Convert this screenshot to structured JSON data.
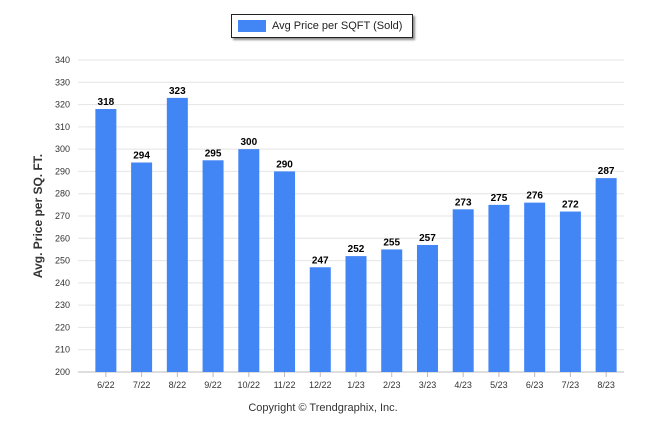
{
  "chart_data": {
    "type": "bar",
    "title": "",
    "xlabel": "",
    "ylabel": "Avg. Price per SQ. FT.",
    "categories": [
      "6/22",
      "7/22",
      "8/22",
      "9/22",
      "10/22",
      "11/22",
      "12/22",
      "1/23",
      "2/23",
      "3/23",
      "4/23",
      "5/23",
      "6/23",
      "7/23",
      "8/23"
    ],
    "series": [
      {
        "name": "Avg Price per SQFT (Sold)",
        "values": [
          318,
          294,
          323,
          295,
          300,
          290,
          247,
          252,
          255,
          257,
          273,
          275,
          276,
          272,
          287
        ]
      }
    ],
    "ylim": [
      200,
      340
    ],
    "yticks": [
      200,
      210,
      220,
      230,
      240,
      250,
      260,
      270,
      280,
      290,
      300,
      310,
      320,
      330,
      340
    ],
    "grid": true,
    "legend_position": "top-center",
    "bar_color": "#4285f4",
    "data_labels": true
  },
  "footer": {
    "copyright": "Copyright © Trendgraphix, Inc."
  }
}
